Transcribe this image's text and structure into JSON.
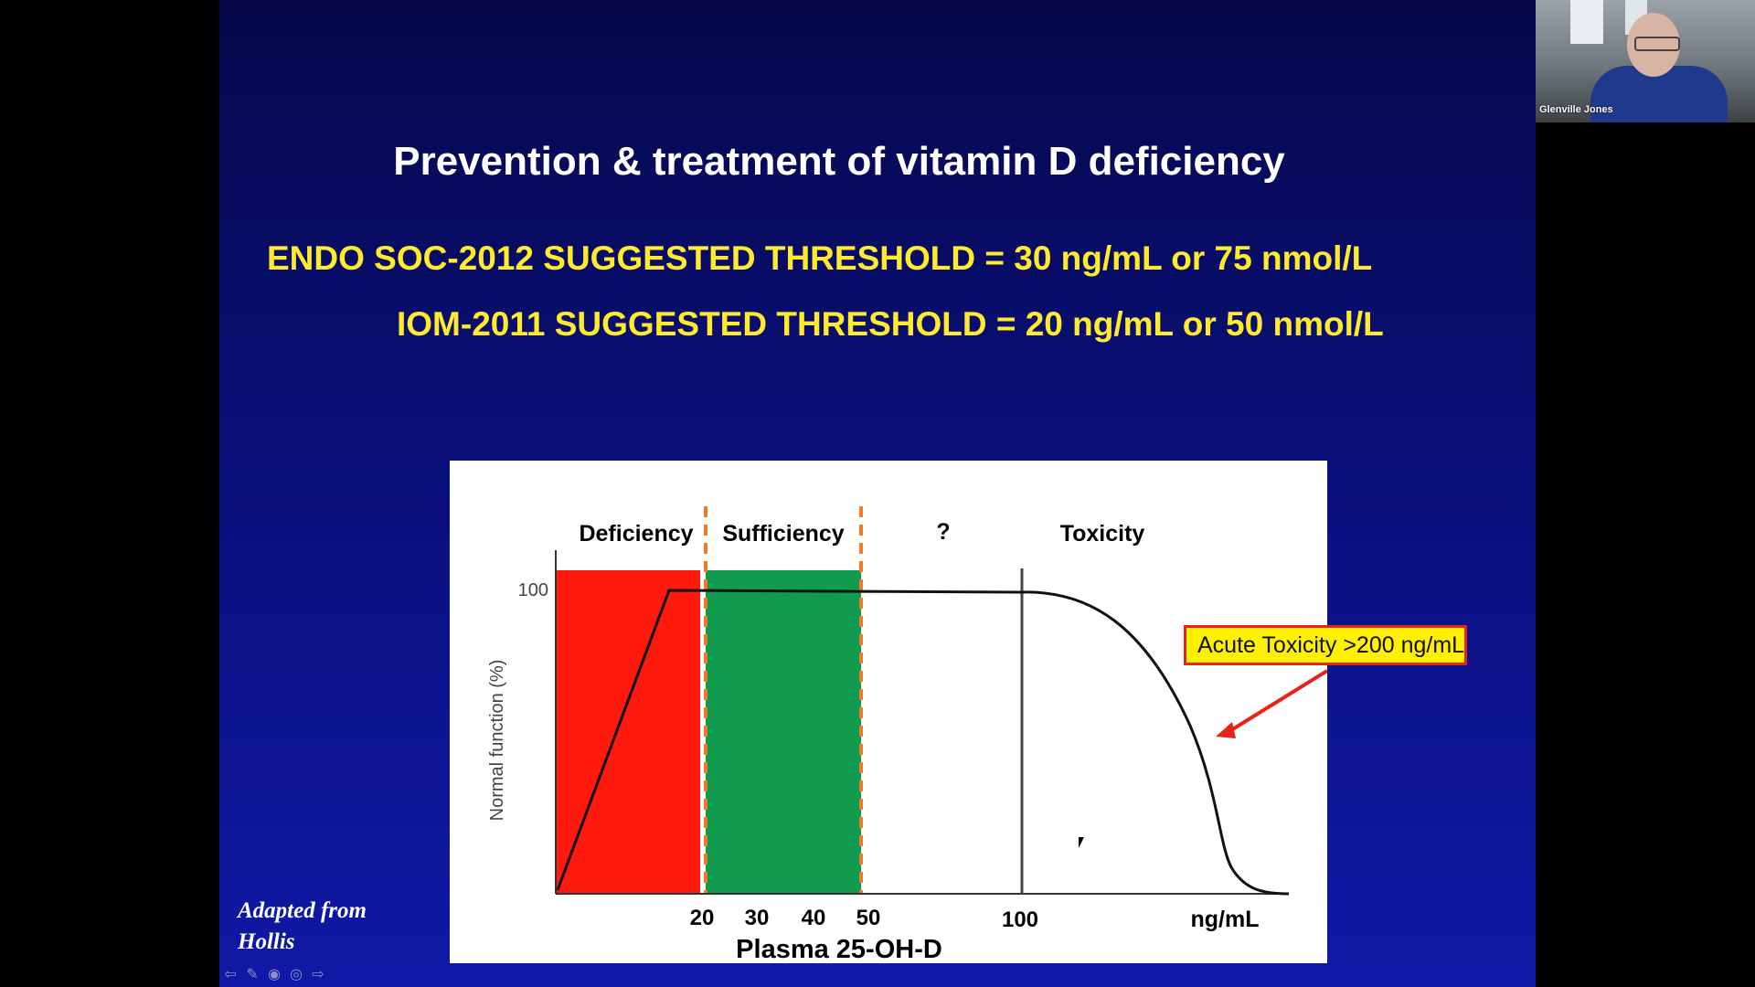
{
  "slide": {
    "title": "Prevention & treatment of vitamin D deficiency",
    "line1": "ENDO SOC-2012  SUGGESTED  THRESHOLD = 30 ng/mL or  75 nmol/L",
    "line2": "IOM-2011  SUGGESTED  THRESHOLD = 20 ng/mL or  50 nmol/L",
    "adapted_line1": "Adapted from",
    "adapted_line2": "Hollis",
    "nav_icons": [
      "arrow-left-icon",
      "pencil-icon",
      "menu-circle-icon",
      "more-circle-icon",
      "arrow-right-icon"
    ]
  },
  "figure": {
    "regions": [
      {
        "label": "Deficiency",
        "color": "#ff1a0d"
      },
      {
        "label": "Sufficiency",
        "color": "#119b50"
      },
      {
        "label": "?",
        "color": "#ffffff"
      },
      {
        "label": "Toxicity",
        "color": "#ffffff"
      }
    ],
    "y_tick": "100",
    "ylabel": "Normal function (%)",
    "x_ticks": [
      "20",
      "30",
      "40",
      "50",
      "100"
    ],
    "x_unit": "ng/mL",
    "xlabel": "Plasma 25-OH-D",
    "callout": "Acute Toxicity >200 ng/mL",
    "threshold_color": "#f07a2a",
    "callout_border": "#e8231a",
    "callout_fill": "#ffef00"
  },
  "video": {
    "participant_name": "Glenville Jones"
  }
}
